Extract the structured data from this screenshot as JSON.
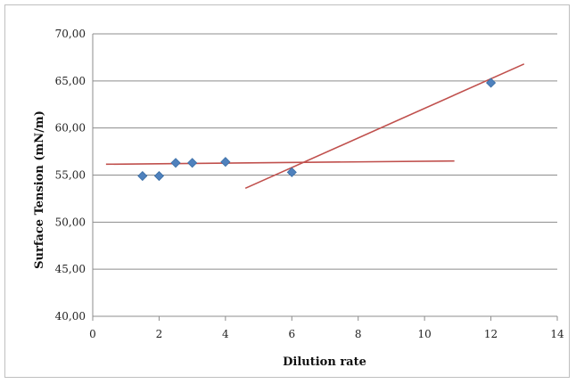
{
  "chart_data": {
    "type": "scatter",
    "xlabel": "Dilution rate",
    "ylabel": "Surface Tension (mN/m)",
    "xlim": [
      0,
      14
    ],
    "ylim": [
      40,
      70
    ],
    "x_ticks": [
      "0",
      "2",
      "4",
      "6",
      "8",
      "10",
      "12",
      "14"
    ],
    "y_ticks": [
      "40,00",
      "45,00",
      "50,00",
      "55,00",
      "60,00",
      "65,00",
      "70,00"
    ],
    "grid": "horizontal",
    "legend": "none",
    "series": [
      {
        "type": "scatter",
        "color": "#4f81bd",
        "x": [
          1.5,
          2,
          2.5,
          3,
          4,
          6,
          12
        ],
        "y": [
          54.9,
          54.9,
          56.3,
          56.3,
          56.4,
          55.3,
          64.8
        ]
      }
    ],
    "trendlines": [
      {
        "color": "#c0504d",
        "x": [
          0.4,
          10.9
        ],
        "y": [
          56.15,
          56.5
        ]
      },
      {
        "color": "#c0504d",
        "x": [
          4.6,
          13.0
        ],
        "y": [
          53.6,
          66.8
        ]
      }
    ]
  }
}
